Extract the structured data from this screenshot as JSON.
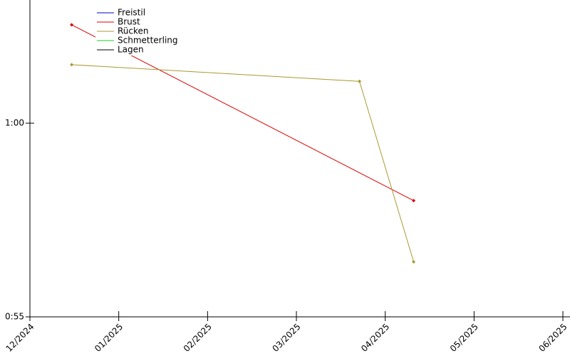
{
  "chart_data": {
    "type": "line",
    "series": [
      {
        "name": "Freistil",
        "color": "#0000cc",
        "x": [],
        "values": []
      },
      {
        "name": "Brust",
        "color": "#dd0000",
        "x": [
          0.47,
          4.32
        ],
        "values": [
          62.54,
          58.0
        ]
      },
      {
        "name": "Rücken",
        "color": "#aa9933",
        "x": [
          0.47,
          3.71,
          4.32
        ],
        "values": [
          61.51,
          61.08,
          56.42
        ]
      },
      {
        "name": "Schmetterling",
        "color": "#22cc22",
        "x": [],
        "values": []
      },
      {
        "name": "Lagen",
        "color": "#000000",
        "x": [],
        "values": []
      }
    ],
    "xlim": [
      0,
      6.08
    ],
    "xticks": [
      {
        "value": 0,
        "label": "12/2024"
      },
      {
        "value": 1,
        "label": "01/2025"
      },
      {
        "value": 2,
        "label": "02/2025"
      },
      {
        "value": 3,
        "label": "03/2025"
      },
      {
        "value": 4,
        "label": "04/2025"
      },
      {
        "value": 5,
        "label": "05/2025"
      },
      {
        "value": 6,
        "label": "06/2025"
      }
    ],
    "ylim": [
      55,
      63.18
    ],
    "yticks": [
      {
        "value": 55,
        "label": "0:55"
      },
      {
        "value": 60,
        "label": "1:00"
      }
    ],
    "legend": "top-left"
  }
}
